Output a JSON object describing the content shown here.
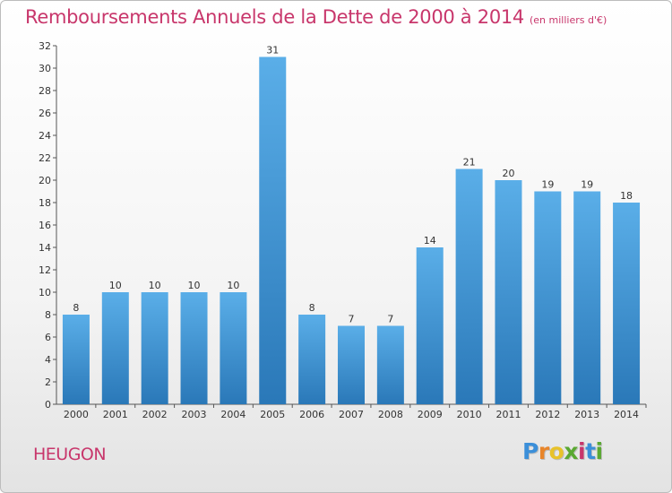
{
  "title": "Remboursements Annuels de la Dette de 2000 à 2014",
  "unit_note": "(en milliers d'€)",
  "town": "HEUGON",
  "logo": {
    "letters": [
      "P",
      "r",
      "o",
      "x",
      "i",
      "t",
      "i"
    ],
    "colors": [
      "#3b8fd9",
      "#e8852a",
      "#e8c22a",
      "#5aa832",
      "#c8366b",
      "#3b8fd9",
      "#5aa832"
    ]
  },
  "colors": {
    "accent": "#c8366b",
    "bar_light": "#5aaee8",
    "bar_dark": "#2a78b8"
  },
  "chart_data": {
    "type": "bar",
    "title": "Remboursements Annuels de la Dette de 2000 à 2014",
    "xlabel": "",
    "ylabel": "",
    "categories": [
      "2000",
      "2001",
      "2002",
      "2003",
      "2004",
      "2005",
      "2006",
      "2007",
      "2008",
      "2009",
      "2010",
      "2011",
      "2012",
      "2013",
      "2014"
    ],
    "values": [
      8,
      10,
      10,
      10,
      10,
      31,
      8,
      7,
      7,
      14,
      21,
      20,
      19,
      19,
      18
    ],
    "ylim": [
      0,
      32
    ],
    "yticks": [
      0,
      2,
      4,
      6,
      8,
      10,
      12,
      14,
      16,
      18,
      20,
      22,
      24,
      26,
      28,
      30,
      32
    ],
    "grid": false
  }
}
